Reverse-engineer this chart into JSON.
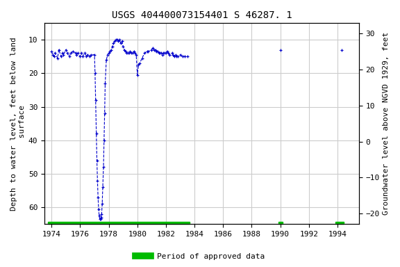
{
  "title": "USGS 404400073154401 S 46287. 1",
  "ylabel_left": "Depth to water level, feet below land\n surface",
  "ylabel_right": "Groundwater level above NGVD 1929, feet",
  "xlim": [
    1973.5,
    1995.5
  ],
  "ylim_left": [
    65,
    5
  ],
  "ylim_right": [
    -23,
    33
  ],
  "xticks": [
    1974,
    1976,
    1978,
    1980,
    1982,
    1984,
    1986,
    1988,
    1990,
    1992,
    1994
  ],
  "yticks_left": [
    10,
    20,
    30,
    40,
    50,
    60
  ],
  "yticks_right": [
    30,
    20,
    10,
    0,
    -10,
    -20
  ],
  "grid_color": "#cccccc",
  "bg_color": "#ffffff",
  "data_color": "#0000cc",
  "approved_color": "#00bb00",
  "legend_label": "Period of approved data",
  "title_fontsize": 10,
  "axis_label_fontsize": 8,
  "tick_fontsize": 8,
  "segment1_x": [
    1974.0,
    1974.08,
    1974.17,
    1974.25,
    1974.42,
    1974.5,
    1974.67,
    1974.75,
    1974.83,
    1975.0,
    1975.08,
    1975.25,
    1975.33,
    1975.5,
    1975.67,
    1975.75,
    1975.83,
    1976.0,
    1976.08,
    1976.17,
    1976.33,
    1976.42,
    1976.5,
    1976.67,
    1976.75,
    1977.0,
    1977.04,
    1977.08,
    1977.13,
    1977.17,
    1977.21,
    1977.25,
    1977.29,
    1977.33,
    1977.37,
    1977.42,
    1977.46,
    1977.5,
    1977.54,
    1977.58,
    1977.63,
    1977.67,
    1977.71,
    1977.75,
    1977.83,
    1977.92,
    1978.0,
    1978.08,
    1978.17,
    1978.25,
    1978.33,
    1978.42,
    1978.5,
    1978.58,
    1978.67,
    1978.75,
    1978.83,
    1978.92,
    1979.0,
    1979.08,
    1979.17,
    1979.25,
    1979.33,
    1979.42,
    1979.5,
    1979.58,
    1979.67,
    1979.75,
    1979.83,
    1979.92,
    1980.0,
    1980.08,
    1980.17,
    1980.33,
    1980.5,
    1980.67,
    1980.75,
    1981.0,
    1981.08,
    1981.17,
    1981.25,
    1981.33,
    1981.42,
    1981.5,
    1981.58,
    1981.67,
    1981.75,
    1981.83,
    1981.92,
    1982.0,
    1982.08,
    1982.17,
    1982.25,
    1982.42,
    1982.5,
    1982.58,
    1982.67,
    1982.75,
    1982.83,
    1983.0,
    1983.17,
    1983.33,
    1983.5
  ],
  "segment1_y": [
    13.5,
    14.5,
    15.0,
    14.0,
    15.5,
    13.0,
    15.0,
    14.0,
    14.5,
    13.0,
    14.0,
    15.0,
    14.0,
    13.5,
    14.0,
    14.5,
    14.0,
    15.0,
    14.0,
    15.0,
    14.0,
    15.0,
    14.5,
    15.0,
    14.5,
    14.5,
    20.0,
    28.0,
    38.0,
    46.0,
    52.0,
    57.0,
    60.5,
    62.5,
    63.5,
    63.5,
    63.0,
    62.0,
    59.0,
    54.0,
    48.0,
    40.0,
    32.0,
    23.0,
    16.0,
    14.5,
    14.0,
    13.5,
    13.0,
    12.0,
    11.0,
    10.5,
    10.0,
    10.0,
    10.5,
    10.0,
    11.0,
    10.5,
    12.0,
    13.0,
    13.5,
    14.0,
    14.0,
    14.0,
    13.5,
    14.0,
    14.0,
    13.5,
    14.0,
    14.5,
    20.5,
    17.5,
    17.0,
    15.5,
    14.0,
    13.5,
    13.5,
    13.0,
    12.5,
    13.0,
    13.0,
    13.5,
    13.5,
    14.0,
    14.0,
    14.0,
    14.5,
    14.0,
    14.0,
    14.0,
    13.5,
    14.0,
    14.5,
    14.0,
    14.5,
    15.0,
    14.5,
    15.0,
    15.0,
    14.5,
    15.0,
    15.0,
    15.0
  ],
  "segment2_x": [
    1990.0
  ],
  "segment2_y": [
    13.0
  ],
  "segment3_x": [
    1994.3
  ],
  "segment3_y": [
    13.0
  ],
  "approved_bars": [
    {
      "x_start": 1973.75,
      "x_end": 1983.67
    },
    {
      "x_start": 1989.85,
      "x_end": 1990.15
    },
    {
      "x_start": 1993.85,
      "x_end": 1994.45
    }
  ]
}
